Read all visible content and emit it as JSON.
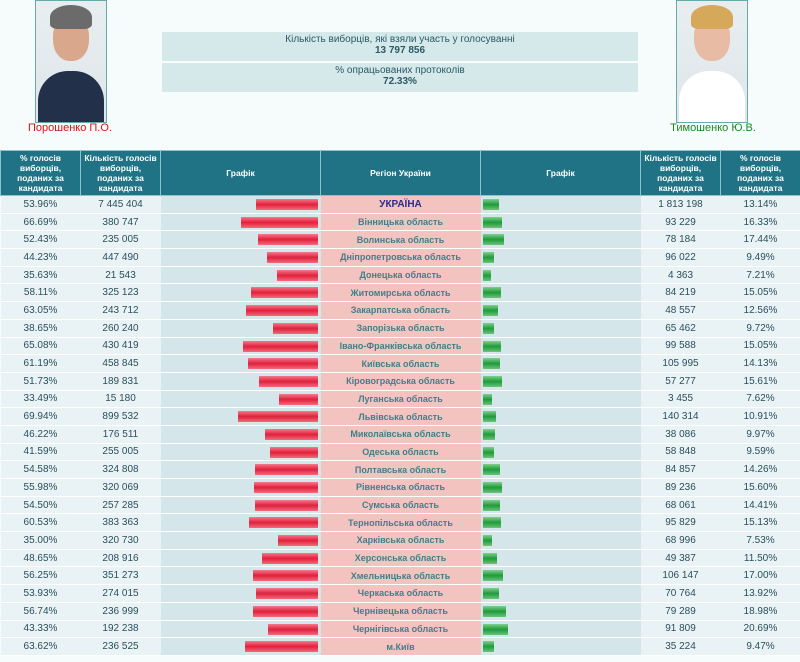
{
  "candidates": {
    "left": {
      "name": "Порошенко П.О.",
      "color": "#e01010"
    },
    "right": {
      "name": "Тимошенко Ю.В.",
      "color": "#1a8a1a"
    }
  },
  "summary": {
    "voters_label": "Кількість виборців, які взяли участь у голосуванні",
    "voters_value": "13 797 856",
    "protocols_label": "% опрацьованих протоколів",
    "protocols_value": "72.33%"
  },
  "headers": [
    "% голосів виборців, поданих за кандидата",
    "Кількість голосів виборців, поданих за кандидата",
    "Графік",
    "Регіон України",
    "Графік",
    "Кількість голосів виборців, поданих за кандидата",
    "% голосів виборців, поданих за кандидата"
  ],
  "rows": [
    [
      "53.96%",
      "7 445 404",
      "УКРАЇНА",
      "1 813 198",
      "13.14%"
    ],
    [
      "66.69%",
      "380 747",
      "Вінницька область",
      "93 229",
      "16.33%"
    ],
    [
      "52.43%",
      "235 005",
      "Волинська область",
      "78 184",
      "17.44%"
    ],
    [
      "44.23%",
      "447 490",
      "Дніпропетровська область",
      "96 022",
      "9.49%"
    ],
    [
      "35.63%",
      "21 543",
      "Донецька область",
      "4 363",
      "7.21%"
    ],
    [
      "58.11%",
      "325 123",
      "Житомирська область",
      "84 219",
      "15.05%"
    ],
    [
      "63.05%",
      "243 712",
      "Закарпатська область",
      "48 557",
      "12.56%"
    ],
    [
      "38.65%",
      "260 240",
      "Запорізька область",
      "65 462",
      "9.72%"
    ],
    [
      "65.08%",
      "430 419",
      "Івано-Франківська область",
      "99 588",
      "15.05%"
    ],
    [
      "61.19%",
      "458 845",
      "Київська область",
      "105 995",
      "14.13%"
    ],
    [
      "51.73%",
      "189 831",
      "Кіровоградська область",
      "57 277",
      "15.61%"
    ],
    [
      "33.49%",
      "15 180",
      "Луганська область",
      "3 455",
      "7.62%"
    ],
    [
      "69.94%",
      "899 532",
      "Львівська область",
      "140 314",
      "10.91%"
    ],
    [
      "46.22%",
      "176 511",
      "Миколаївська область",
      "38 086",
      "9.97%"
    ],
    [
      "41.59%",
      "255 005",
      "Одеська область",
      "58 848",
      "9.59%"
    ],
    [
      "54.58%",
      "324 808",
      "Полтавська область",
      "84 857",
      "14.26%"
    ],
    [
      "55.98%",
      "320 069",
      "Рівненська область",
      "89 236",
      "15.60%"
    ],
    [
      "54.50%",
      "257 285",
      "Сумська область",
      "68 061",
      "14.41%"
    ],
    [
      "60.53%",
      "383 363",
      "Тернопільська область",
      "95 829",
      "15.13%"
    ],
    [
      "35.00%",
      "320 730",
      "Харківська область",
      "68 996",
      "7.53%"
    ],
    [
      "48.65%",
      "208 916",
      "Херсонська область",
      "49 387",
      "11.50%"
    ],
    [
      "56.25%",
      "351 273",
      "Хмельницька область",
      "106 147",
      "17.00%"
    ],
    [
      "53.93%",
      "274 015",
      "Черкаська область",
      "70 764",
      "13.92%"
    ],
    [
      "56.74%",
      "236 999",
      "Чернівецька область",
      "79 289",
      "18.98%"
    ],
    [
      "43.33%",
      "192 238",
      "Чернігівська область",
      "91 809",
      "20.69%"
    ],
    [
      "63.62%",
      "236 525",
      "м.Київ",
      "35 224",
      "9.47%"
    ]
  ]
}
